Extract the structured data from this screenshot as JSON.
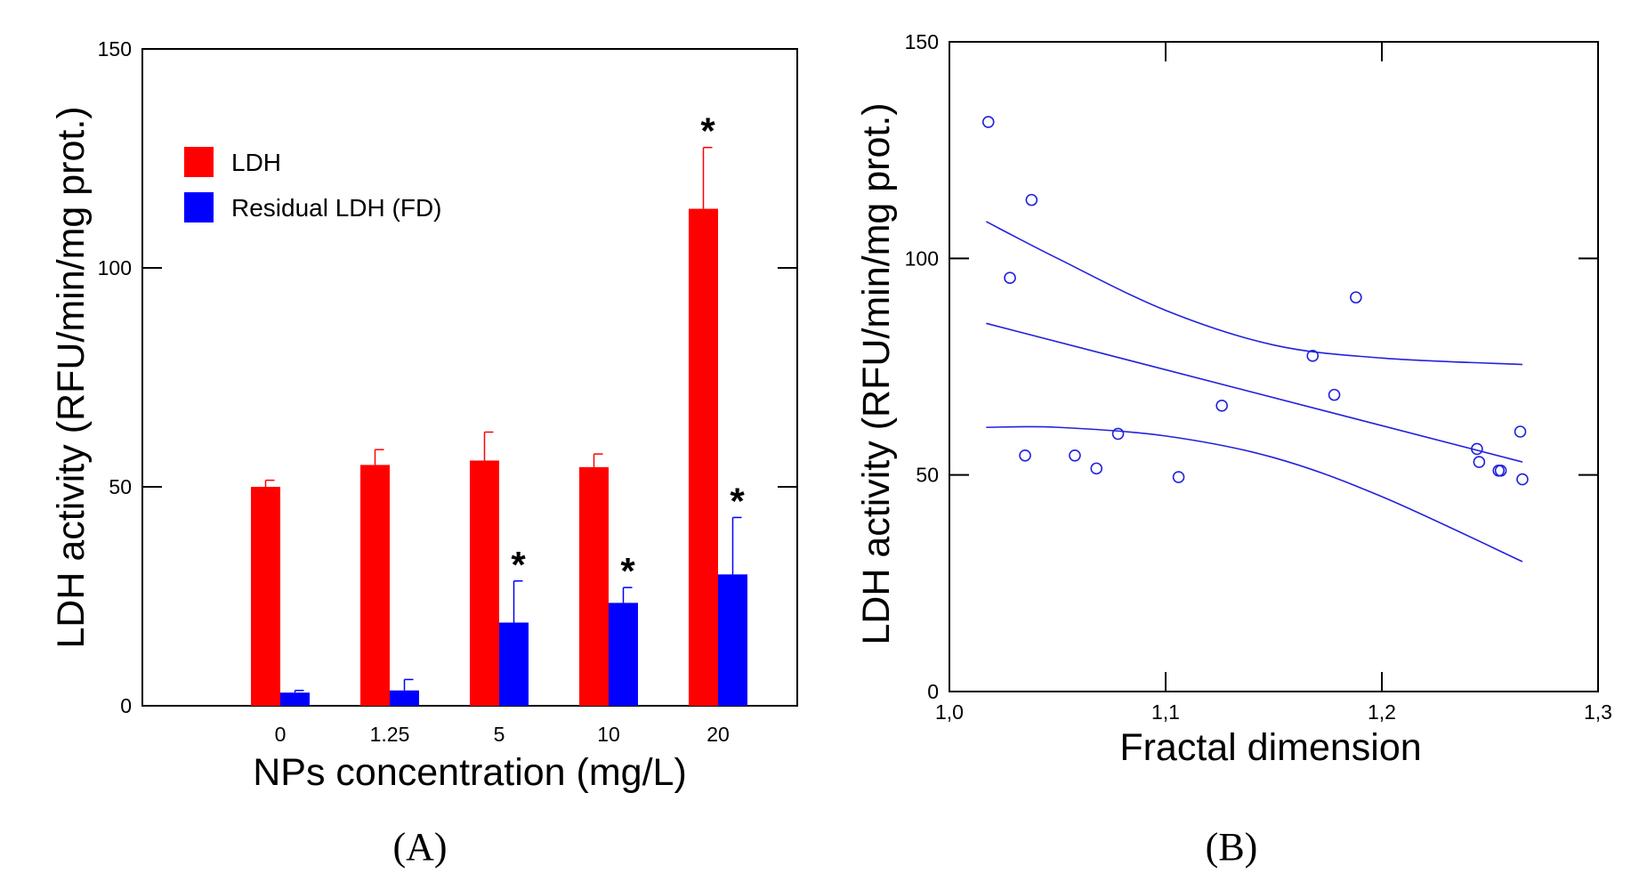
{
  "chart_data": [
    {
      "panel": "(A)",
      "type": "bar",
      "xlabel": "NPs concentration (mg/L)",
      "ylabel": "LDH activity (RFU/min/mg prot.)",
      "ylim": [
        0,
        150
      ],
      "yticks": [
        0,
        50,
        100,
        150
      ],
      "categories": [
        "0",
        "1.25",
        "5",
        "10",
        "20"
      ],
      "legend_position": "top-left",
      "series": [
        {
          "name": "LDH",
          "color": "#ff0000",
          "values": [
            50,
            55,
            56,
            54.5,
            113.5
          ],
          "errors": [
            1.5,
            3.5,
            6.5,
            3,
            14
          ],
          "significance": [
            "",
            "",
            "",
            "",
            "*"
          ]
        },
        {
          "name": "Residual LDH (FD)",
          "color": "#0000ff",
          "values": [
            3,
            3.5,
            19,
            23.5,
            30
          ],
          "errors": [
            0.5,
            2.5,
            9.5,
            3.5,
            13
          ],
          "significance": [
            "",
            "",
            "*",
            "*",
            "*"
          ]
        }
      ]
    },
    {
      "panel": "(B)",
      "type": "scatter",
      "xlabel": "Fractal dimension",
      "ylabel": "LDH activity (RFU/min/mg prot.)",
      "xlim": [
        1.0,
        1.3
      ],
      "ylim": [
        0,
        150
      ],
      "xticks": [
        "1,0",
        "1,1",
        "1,2",
        "1,3"
      ],
      "yticks": [
        "0",
        "50",
        "100",
        "150"
      ],
      "color": "#2222dd",
      "points": [
        [
          1.018,
          131.5
        ],
        [
          1.028,
          95.5
        ],
        [
          1.035,
          54.5
        ],
        [
          1.038,
          113.5
        ],
        [
          1.058,
          54.5
        ],
        [
          1.068,
          51.5
        ],
        [
          1.078,
          59.5
        ],
        [
          1.106,
          49.5
        ],
        [
          1.126,
          66
        ],
        [
          1.168,
          77.5
        ],
        [
          1.178,
          68.5
        ],
        [
          1.188,
          91
        ],
        [
          1.244,
          56
        ],
        [
          1.245,
          53
        ],
        [
          1.254,
          51
        ],
        [
          1.255,
          51
        ],
        [
          1.264,
          60
        ],
        [
          1.265,
          49
        ]
      ],
      "regression": [
        [
          1.017,
          85
        ],
        [
          1.265,
          53
        ]
      ],
      "upper_ci": [
        [
          1.017,
          108.5
        ],
        [
          1.05,
          100
        ],
        [
          1.1,
          88
        ],
        [
          1.15,
          80
        ],
        [
          1.2,
          77
        ],
        [
          1.265,
          75.5
        ]
      ],
      "lower_ci": [
        [
          1.017,
          61
        ],
        [
          1.05,
          61
        ],
        [
          1.1,
          59
        ],
        [
          1.15,
          54
        ],
        [
          1.2,
          45
        ],
        [
          1.265,
          30
        ]
      ]
    }
  ]
}
